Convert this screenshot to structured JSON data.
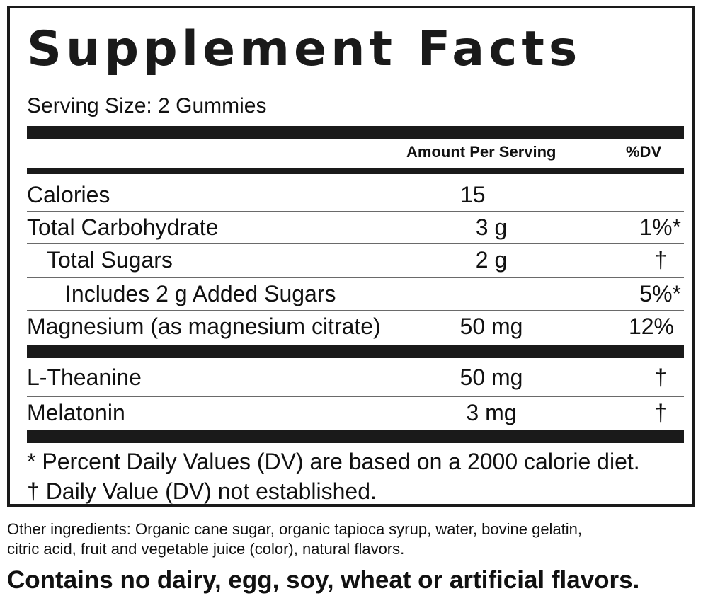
{
  "panel": {
    "title": "Supplement Facts",
    "serving_size": "Serving Size: 2 Gummies",
    "columns": {
      "amount": "Amount Per Serving",
      "dv": "%DV"
    },
    "rows": [
      {
        "name": "Calories",
        "amount": "15",
        "dv": ""
      },
      {
        "name": "Total Carbohydrate",
        "amount": "3 g",
        "dv": "1%*"
      },
      {
        "name": "Total Sugars",
        "amount": "2 g",
        "dv": "†"
      },
      {
        "name": "Includes 2 g Added Sugars",
        "amount": "",
        "dv": "5%*"
      },
      {
        "name": "Magnesium (as magnesium citrate)",
        "amount": "50 mg",
        "dv": "12%"
      },
      {
        "name": "L-Theanine",
        "amount": "50 mg",
        "dv": "†"
      },
      {
        "name": "Melatonin",
        "amount": "3 mg",
        "dv": "†"
      }
    ],
    "footnotes": [
      "* Percent Daily Values (DV) are based on a 2000 calorie diet.",
      "† Daily Value (DV) not established."
    ]
  },
  "other_ingredients": [
    "Other ingredients: Organic cane sugar, organic tapioca syrup, water, bovine gelatin,",
    "citric acid, fruit and vegetable juice (color), natural flavors."
  ],
  "contains_statement": "Contains no dairy, egg, soy, wheat or artificial flavors."
}
